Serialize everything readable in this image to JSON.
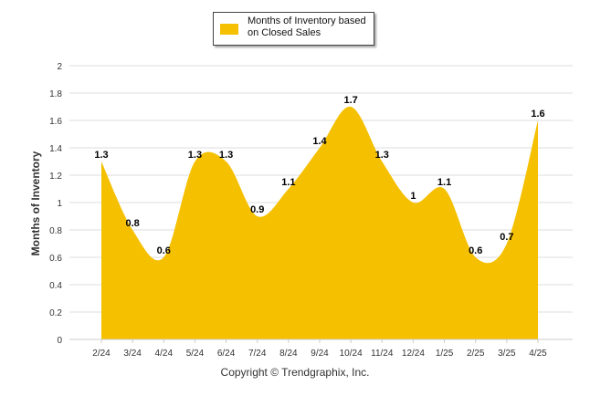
{
  "colors": {
    "series": "#F5C000",
    "grid": "#dddddd",
    "axis_text": "#333333",
    "label_text": "#000000"
  },
  "legend": {
    "label": "Months of Inventory based on Closed Sales"
  },
  "copyright": "Copyright © Trendgraphix, Inc.",
  "chart_data": {
    "type": "area",
    "categories": [
      "2/24",
      "3/24",
      "4/24",
      "5/24",
      "6/24",
      "7/24",
      "8/24",
      "9/24",
      "10/24",
      "11/24",
      "12/24",
      "1/25",
      "2/25",
      "3/25",
      "4/25"
    ],
    "series": [
      {
        "name": "Months of Inventory based on Closed Sales",
        "values": [
          1.3,
          0.8,
          0.6,
          1.3,
          1.3,
          0.9,
          1.1,
          1.4,
          1.7,
          1.3,
          1,
          1.1,
          0.6,
          0.7,
          1.6
        ],
        "labels": [
          "1.3",
          "0.8",
          "0.6",
          "1.3",
          "1.3",
          "0.9",
          "1.1",
          "1.4",
          "1.7",
          "1.3",
          "1",
          "1.1",
          "0.6",
          "0.7",
          "1.6"
        ]
      }
    ],
    "ylabel": "Months of Inventory",
    "ylim": [
      0,
      2
    ],
    "yticks": [
      "0",
      "0.2",
      "0.4",
      "0.6",
      "0.8",
      "1",
      "1.2",
      "1.4",
      "1.6",
      "1.8",
      "2"
    ],
    "grid": true,
    "legend_position": "top-center"
  }
}
